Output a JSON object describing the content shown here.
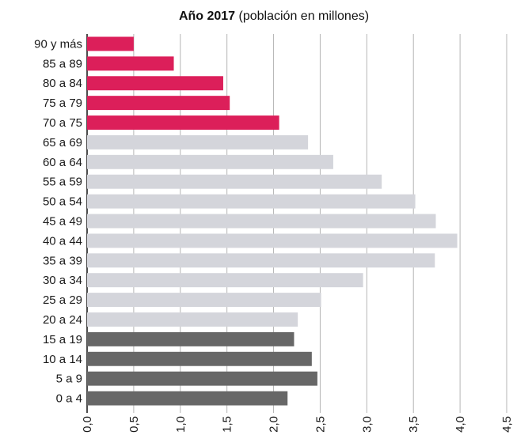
{
  "chart_data": {
    "type": "bar",
    "orientation": "horizontal",
    "title_bold": "Año 2017",
    "title_rest": " (población en millones)",
    "categories": [
      "90 y más",
      "85 a 89",
      "80 a 84",
      "75 a 79",
      "70 a 75",
      "65 a 69",
      "60 a 64",
      "55 a 59",
      "50 a 54",
      "45 a 49",
      "40 a 44",
      "35 a 39",
      "30 a 34",
      "25 a 29",
      "20 a 24",
      "15 a 19",
      "10 a 14",
      "5 a 9",
      "0 a 4"
    ],
    "values": [
      0.5,
      0.93,
      1.46,
      1.53,
      2.06,
      2.37,
      2.64,
      3.16,
      3.52,
      3.74,
      3.97,
      3.73,
      2.96,
      2.51,
      2.26,
      2.22,
      2.41,
      2.47,
      2.15
    ],
    "groups": [
      "elderly",
      "elderly",
      "elderly",
      "elderly",
      "elderly",
      "adult",
      "adult",
      "adult",
      "adult",
      "adult",
      "adult",
      "adult",
      "adult",
      "adult",
      "adult",
      "young",
      "young",
      "young",
      "young"
    ],
    "colors": {
      "elderly": "#dc1f5a",
      "adult": "#d4d5db",
      "young": "#676767",
      "grid": "#b5b5b5",
      "axis": "#111111"
    },
    "xlim": [
      0,
      4.5
    ],
    "xticks": [
      0,
      0.5,
      1,
      1.5,
      2,
      2.5,
      3,
      3.5,
      4,
      4.5
    ],
    "xtick_labels": [
      "0,0",
      "0,5",
      "1,0",
      "1,5",
      "2,0",
      "2,5",
      "3,0",
      "3,5",
      "4,0",
      "4,5"
    ],
    "grid": "vertical"
  }
}
